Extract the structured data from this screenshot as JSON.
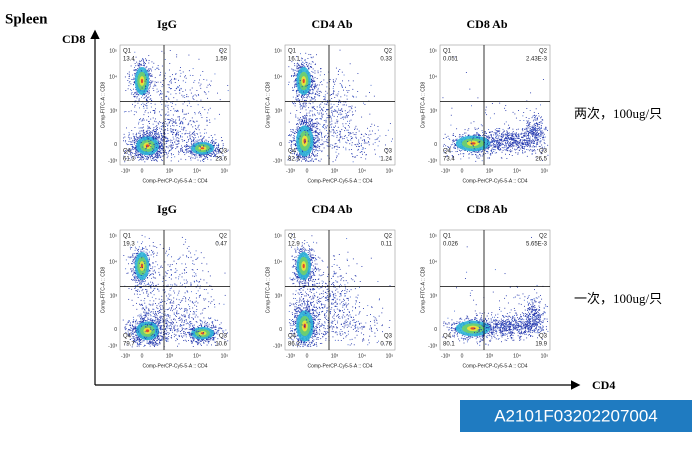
{
  "header": {
    "tissue": "Spleen",
    "y_marker": "CD8",
    "x_marker": "CD4"
  },
  "axes": {
    "y_label": "Comp-FITC-A :: CD8",
    "x_label": "Comp-PerCP-Cy5-5-A :: CD4",
    "y_ticks": [
      "10⁵",
      "10⁴",
      "10³",
      "0",
      "-10³"
    ],
    "x_ticks": [
      "-10³",
      "0",
      "10³",
      "10⁴",
      "10⁵"
    ]
  },
  "rows": [
    {
      "label": "两次，100ug/只",
      "panels": [
        {
          "title": "IgG",
          "quadrants": [
            {
              "label": "Q1",
              "value": "13.4"
            },
            {
              "label": "Q2",
              "value": "1.59"
            },
            {
              "label": "Q3",
              "value": "23.6"
            },
            {
              "label": "Q4",
              "value": "61.3"
            }
          ]
        },
        {
          "title": "CD4 Ab",
          "quadrants": [
            {
              "label": "Q1",
              "value": "16.1"
            },
            {
              "label": "Q2",
              "value": "0.33"
            },
            {
              "label": "Q3",
              "value": "1.24"
            },
            {
              "label": "Q4",
              "value": "82.3"
            }
          ]
        },
        {
          "title": "CD8 Ab",
          "quadrants": [
            {
              "label": "Q1",
              "value": "0.051"
            },
            {
              "label": "Q2",
              "value": "2.43E-3"
            },
            {
              "label": "Q3",
              "value": "26.5"
            },
            {
              "label": "Q4",
              "value": "73.4"
            }
          ]
        }
      ]
    },
    {
      "label": "一次，100ug/只",
      "panels": [
        {
          "title": "IgG",
          "quadrants": [
            {
              "label": "Q1",
              "value": "19.3"
            },
            {
              "label": "Q2",
              "value": "0.47"
            },
            {
              "label": "Q3",
              "value": "10.6"
            },
            {
              "label": "Q4",
              "value": "79.7"
            }
          ]
        },
        {
          "title": "CD4 Ab",
          "quadrants": [
            {
              "label": "Q1",
              "value": "12.9"
            },
            {
              "label": "Q2",
              "value": "0.11"
            },
            {
              "label": "Q3",
              "value": "0.76"
            },
            {
              "label": "Q4",
              "value": "86.2"
            }
          ]
        },
        {
          "title": "CD8 Ab",
          "quadrants": [
            {
              "label": "Q1",
              "value": "0.026"
            },
            {
              "label": "Q2",
              "value": "5.65E-3"
            },
            {
              "label": "Q3",
              "value": "19.9"
            },
            {
              "label": "Q4",
              "value": "80.1"
            }
          ]
        }
      ]
    }
  ],
  "footer": {
    "code": "A2101F03202207004"
  }
}
